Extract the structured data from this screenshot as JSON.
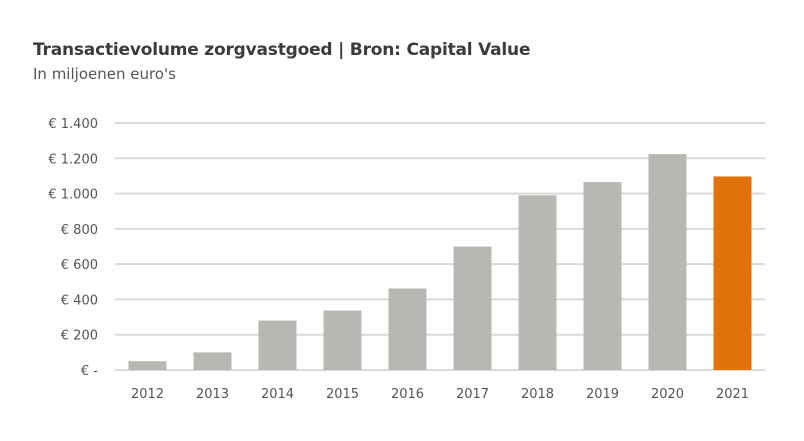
{
  "chart_data": {
    "type": "bar",
    "title": "Transactievolume zorgvastgoed | Bron: Capital Value",
    "subtitle": "In miljoenen euro's",
    "xlabel": "",
    "ylabel": "",
    "categories": [
      "2012",
      "2013",
      "2014",
      "2015",
      "2016",
      "2017",
      "2018",
      "2019",
      "2020",
      "2021"
    ],
    "values": [
      50,
      100,
      280,
      337,
      462,
      700,
      990,
      1065,
      1224,
      1097
    ],
    "ylim": [
      0,
      1400
    ],
    "yticks": [
      0,
      200,
      400,
      600,
      800,
      1000,
      1200,
      1400
    ],
    "ytick_labels": [
      "€ -",
      "€ 200",
      "€ 400",
      "€ 600",
      "€ 800",
      "€ 1.000",
      "€ 1.200",
      "€ 1.400"
    ],
    "grid": true,
    "legend": "none",
    "colors": {
      "default": "#b8b8b3",
      "highlight": "#e2730a",
      "grid": "#d9d9d9"
    },
    "highlight_category": "2021"
  }
}
